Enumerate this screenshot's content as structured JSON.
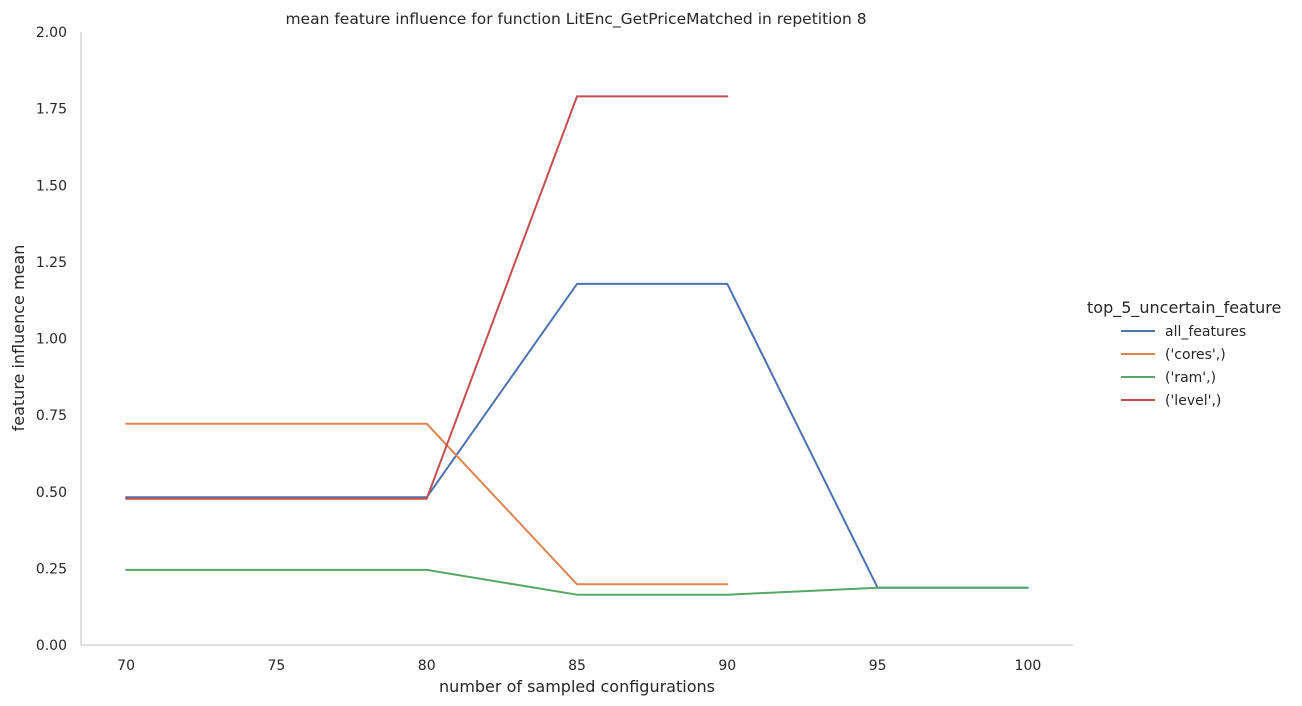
{
  "chart_data": {
    "type": "line",
    "title": "mean feature influence for function LitEnc_GetPriceMatched in repetition 8",
    "xlabel": "number of sampled configurations",
    "ylabel": "feature influence mean",
    "xlim": [
      68.5,
      101.5
    ],
    "ylim": [
      0,
      2.0
    ],
    "xticks": [
      70,
      75,
      80,
      85,
      90,
      95,
      100
    ],
    "yticks": [
      0.0,
      0.25,
      0.5,
      0.75,
      1.0,
      1.25,
      1.5,
      1.75,
      2.0
    ],
    "ytick_labels": [
      "0.00",
      "0.25",
      "0.50",
      "0.75",
      "1.00",
      "1.25",
      "1.50",
      "1.75",
      "2.00"
    ],
    "grid": false,
    "legend": {
      "title": "top_5_uncertain_feature",
      "placement": "right"
    },
    "series": [
      {
        "name": "all_features",
        "color": "#4c72b0",
        "x": [
          70,
          80,
          85,
          90,
          95,
          100
        ],
        "y": [
          0.482,
          0.482,
          1.178,
          1.178,
          0.187,
          0.187
        ]
      },
      {
        "name": "('cores',)",
        "color": "#dd8452",
        "x": [
          70,
          80,
          85,
          90
        ],
        "y": [
          0.722,
          0.722,
          0.198,
          0.198
        ]
      },
      {
        "name": "('ram',)",
        "color": "#55a868",
        "x": [
          70,
          80,
          85,
          90,
          95,
          100
        ],
        "y": [
          0.245,
          0.245,
          0.164,
          0.164,
          0.187,
          0.187
        ]
      },
      {
        "name": "('level',)",
        "color": "#c44e52",
        "x": [
          70,
          80,
          85,
          90
        ],
        "y": [
          0.477,
          0.477,
          1.79,
          1.79
        ]
      }
    ]
  }
}
